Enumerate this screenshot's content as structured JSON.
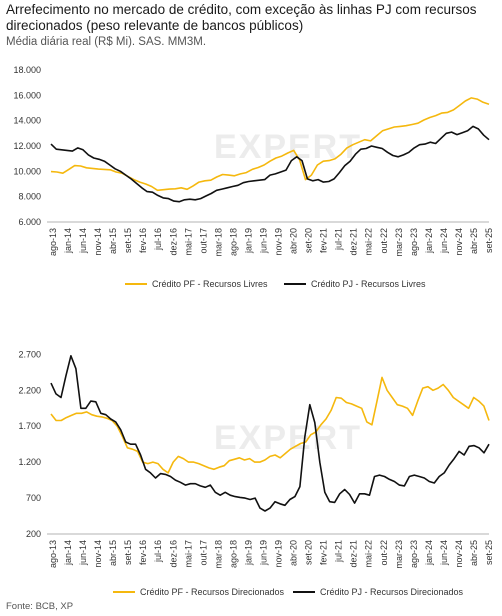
{
  "title": "Arrefecimento no mercado de crédito, com exceção às linhas PJ com recursos direcionados (peso relevante de bancos públicos)",
  "subtitle": "Média diária real (R$ Mi). SAS. MM3M.",
  "source": "Fonte: BCB, XP",
  "watermark": "EXPERT",
  "colors": {
    "pf": "#F5B80E",
    "pj": "#111111",
    "axis": "#9a9a9a"
  },
  "x_labels": [
    "ago-13",
    "jan-14",
    "jun-14",
    "nov-14",
    "abr-15",
    "set-15",
    "fev-16",
    "jul-16",
    "dez-16",
    "mai-17",
    "out-17",
    "mar-18",
    "ago-18",
    "jan-19",
    "jun-19",
    "nov-19",
    "abr-20",
    "set-20",
    "fev-21",
    "jul-21",
    "dez-21",
    "mai-22",
    "out-22",
    "mar-23",
    "ago-23",
    "jan-24",
    "jun-24",
    "nov-24",
    "abr-25",
    "set-25"
  ],
  "chart_data": [
    {
      "type": "line",
      "title": "",
      "ylim": [
        6000,
        18000
      ],
      "yticks": [
        "6.000",
        "8.000",
        "10.000",
        "12.000",
        "14.000",
        "16.000",
        "18.000"
      ],
      "legend": "bottom",
      "series": [
        {
          "name": "Crédito PF - Recursos Livres",
          "color": "#F5B80E",
          "values": [
            9980,
            9950,
            9850,
            10150,
            10450,
            10420,
            10280,
            10230,
            10180,
            10150,
            10120,
            9950,
            9850,
            9600,
            9350,
            9150,
            9000,
            8800,
            8500,
            8550,
            8600,
            8620,
            8700,
            8580,
            8850,
            9150,
            9250,
            9300,
            9550,
            9750,
            9700,
            9650,
            9800,
            9900,
            10150,
            10300,
            10500,
            10800,
            11050,
            11200,
            11450,
            11650,
            10900,
            9350,
            9700,
            10500,
            10800,
            10850,
            11000,
            11350,
            11850,
            12100,
            12300,
            12500,
            12400,
            12800,
            13200,
            13350,
            13500,
            13550,
            13600,
            13700,
            13800,
            14050,
            14250,
            14400,
            14600,
            14650,
            14850,
            15200,
            15550,
            15800,
            15700,
            15450,
            15300
          ]
        },
        {
          "name": "Crédito PJ - Recursos Livres",
          "color": "#111111",
          "values": [
            12150,
            11750,
            11700,
            11650,
            11600,
            11850,
            11700,
            11300,
            11050,
            10950,
            10800,
            10500,
            10200,
            10000,
            9700,
            9400,
            9050,
            8700,
            8400,
            8350,
            8100,
            7900,
            7850,
            7650,
            7600,
            7750,
            7800,
            7750,
            7850,
            8050,
            8250,
            8500,
            8600,
            8700,
            8800,
            8900,
            9100,
            9200,
            9250,
            9300,
            9350,
            9700,
            9800,
            9950,
            10100,
            10850,
            11150,
            10850,
            9400,
            9250,
            9350,
            9150,
            9200,
            9400,
            9900,
            10450,
            10800,
            11350,
            11750,
            11800,
            12000,
            11900,
            11800,
            11500,
            11250,
            11150,
            11300,
            11500,
            11850,
            12100,
            12150,
            12300,
            12200,
            12600,
            13000,
            13100,
            12900,
            13050,
            13200,
            13550,
            13350,
            12850,
            12500
          ]
        }
      ]
    },
    {
      "type": "line",
      "title": "",
      "ylim": [
        200,
        2900
      ],
      "yticks": [
        "200",
        "700",
        "1.200",
        "1.700",
        "2.200",
        "2.700"
      ],
      "legend": "bottom",
      "series": [
        {
          "name": "Crédito PF - Recursos Direcionados",
          "color": "#F5B80E",
          "values": [
            1870,
            1780,
            1780,
            1820,
            1850,
            1880,
            1880,
            1900,
            1860,
            1840,
            1830,
            1810,
            1780,
            1700,
            1560,
            1400,
            1380,
            1350,
            1200,
            1180,
            1200,
            1180,
            1100,
            1050,
            1200,
            1280,
            1250,
            1200,
            1200,
            1180,
            1150,
            1120,
            1100,
            1130,
            1150,
            1220,
            1240,
            1260,
            1230,
            1250,
            1200,
            1200,
            1230,
            1280,
            1300,
            1260,
            1320,
            1380,
            1420,
            1460,
            1480,
            1580,
            1620,
            1720,
            1800,
            1920,
            2100,
            2090,
            2030,
            2010,
            1980,
            1950,
            1760,
            1720,
            2050,
            2380,
            2200,
            2100,
            2000,
            1980,
            1950,
            1850,
            2050,
            2230,
            2250,
            2200,
            2230,
            2280,
            2200,
            2100,
            2050,
            2000,
            1950,
            2100,
            2050,
            1980,
            1780
          ]
        },
        {
          "name": "Crédito PJ - Recursos Direcionados",
          "color": "#111111",
          "values": [
            2300,
            2150,
            2100,
            2400,
            2680,
            2500,
            1950,
            1950,
            2050,
            2040,
            1880,
            1860,
            1800,
            1760,
            1650,
            1480,
            1450,
            1450,
            1300,
            1100,
            1050,
            980,
            1040,
            1030,
            1000,
            950,
            920,
            880,
            900,
            900,
            870,
            850,
            880,
            780,
            740,
            780,
            740,
            720,
            710,
            700,
            680,
            700,
            560,
            520,
            560,
            650,
            620,
            600,
            680,
            720,
            860,
            1550,
            2000,
            1750,
            1200,
            780,
            650,
            640,
            760,
            820,
            750,
            630,
            760,
            760,
            740,
            1000,
            1020,
            1000,
            960,
            930,
            880,
            870,
            1000,
            1020,
            1000,
            980,
            930,
            910,
            1000,
            1050,
            1160,
            1250,
            1350,
            1300,
            1420,
            1430,
            1400,
            1330,
            1450
          ]
        }
      ]
    }
  ]
}
